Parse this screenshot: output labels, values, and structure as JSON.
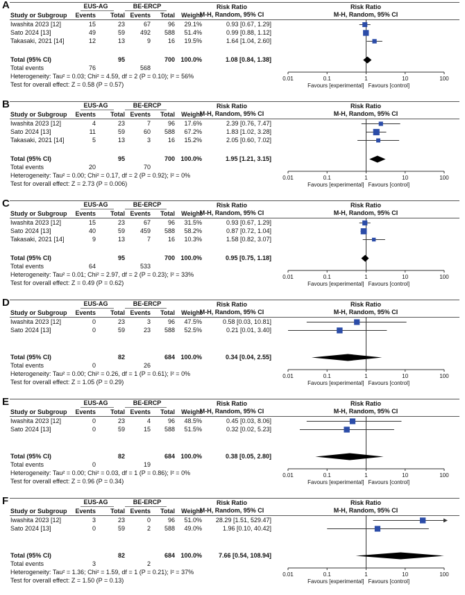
{
  "header": {
    "study": "Study or Subgroup",
    "exp_group": "EUS-AG",
    "ctrl_group": "BE-ERCP",
    "events": "Events",
    "total": "Total",
    "weight": "Weight",
    "rr_title": "Risk Ratio",
    "rr_method": "M-H, Random, 95% CI"
  },
  "axis": {
    "ticks": [
      "0.01",
      "0.1",
      "1",
      "10",
      "100"
    ],
    "left_label": "Favours [experimental]",
    "right_label": "Favours [control]"
  },
  "colors": {
    "square": "#2b4ca8",
    "diamond": "#000000",
    "line": "#333333"
  },
  "chart_data": [
    {
      "type": "forest",
      "panel": "A",
      "xscale": "log",
      "xlim": [
        0.01,
        100
      ],
      "studies": [
        {
          "name": "Iwashita 2023 [12]",
          "e1": "15",
          "n1": "23",
          "e2": "67",
          "n2": "96",
          "weight": "29.1%",
          "ci_text": "0.93 [0.67, 1.29]",
          "rr": 0.93,
          "lo": 0.67,
          "hi": 1.29,
          "w": 29.1
        },
        {
          "name": "Sato 2024 [13]",
          "e1": "49",
          "n1": "59",
          "e2": "492",
          "n2": "588",
          "weight": "51.4%",
          "ci_text": "0.99 [0.88, 1.12]",
          "rr": 0.99,
          "lo": 0.88,
          "hi": 1.12,
          "w": 51.4
        },
        {
          "name": "Takasaki, 2021 [14]",
          "e1": "12",
          "n1": "13",
          "e2": "9",
          "n2": "16",
          "weight": "19.5%",
          "ci_text": "1.64 [1.04, 2.60]",
          "rr": 1.64,
          "lo": 1.04,
          "hi": 2.6,
          "w": 19.5
        }
      ],
      "total": {
        "label": "Total (95% CI)",
        "n1": "95",
        "n2": "700",
        "weight": "100.0%",
        "ci_text": "1.08 [0.84, 1.38]",
        "rr": 1.08,
        "lo": 0.84,
        "hi": 1.38
      },
      "total_events": {
        "label": "Total events",
        "e1": "76",
        "e2": "568"
      },
      "heterogeneity": "Heterogeneity: Tau² = 0.03; Chi² = 4.59, df = 2 (P = 0.10); I² = 56%",
      "overall": "Test for overall effect: Z = 0.58 (P = 0.57)"
    },
    {
      "type": "forest",
      "panel": "B",
      "xscale": "log",
      "xlim": [
        0.01,
        100
      ],
      "studies": [
        {
          "name": "Iwashita 2023 [12]",
          "e1": "4",
          "n1": "23",
          "e2": "7",
          "n2": "96",
          "weight": "17.6%",
          "ci_text": "2.39 [0.76, 7.47]",
          "rr": 2.39,
          "lo": 0.76,
          "hi": 7.47,
          "w": 17.6
        },
        {
          "name": "Sato 2024 [13]",
          "e1": "11",
          "n1": "59",
          "e2": "60",
          "n2": "588",
          "weight": "67.2%",
          "ci_text": "1.83 [1.02, 3.28]",
          "rr": 1.83,
          "lo": 1.02,
          "hi": 3.28,
          "w": 67.2
        },
        {
          "name": "Takasaki, 2021 [14]",
          "e1": "5",
          "n1": "13",
          "e2": "3",
          "n2": "16",
          "weight": "15.2%",
          "ci_text": "2.05 [0.60, 7.02]",
          "rr": 2.05,
          "lo": 0.6,
          "hi": 7.02,
          "w": 15.2
        }
      ],
      "total": {
        "label": "Total (95% CI)",
        "n1": "95",
        "n2": "700",
        "weight": "100.0%",
        "ci_text": "1.95 [1.21, 3.15]",
        "rr": 1.95,
        "lo": 1.21,
        "hi": 3.15
      },
      "total_events": {
        "label": "Total events",
        "e1": "20",
        "e2": "70"
      },
      "heterogeneity": "Heterogeneity: Tau² = 0.00; Chi² = 0.17, df = 2 (P = 0.92); I² = 0%",
      "overall": "Test for overall effect: Z = 2.73 (P = 0.006)"
    },
    {
      "type": "forest",
      "panel": "C",
      "xscale": "log",
      "xlim": [
        0.01,
        100
      ],
      "studies": [
        {
          "name": "Iwashita 2023 [12]",
          "e1": "15",
          "n1": "23",
          "e2": "67",
          "n2": "96",
          "weight": "31.5%",
          "ci_text": "0.93 [0.67, 1.29]",
          "rr": 0.93,
          "lo": 0.67,
          "hi": 1.29,
          "w": 31.5
        },
        {
          "name": "Sato 2024 [13]",
          "e1": "40",
          "n1": "59",
          "e2": "459",
          "n2": "588",
          "weight": "58.2%",
          "ci_text": "0.87 [0.72, 1.04]",
          "rr": 0.87,
          "lo": 0.72,
          "hi": 1.04,
          "w": 58.2
        },
        {
          "name": "Takasaki, 2021 [14]",
          "e1": "9",
          "n1": "13",
          "e2": "7",
          "n2": "16",
          "weight": "10.3%",
          "ci_text": "1.58 [0.82, 3.07]",
          "rr": 1.58,
          "lo": 0.82,
          "hi": 3.07,
          "w": 10.3
        }
      ],
      "total": {
        "label": "Total (95% CI)",
        "n1": "95",
        "n2": "700",
        "weight": "100.0%",
        "ci_text": "0.95 [0.75, 1.18]",
        "rr": 0.95,
        "lo": 0.75,
        "hi": 1.18
      },
      "total_events": {
        "label": "Total events",
        "e1": "64",
        "e2": "533"
      },
      "heterogeneity": "Heterogeneity: Tau² = 0.01; Chi² = 2.97, df = 2 (P = 0.23); I² = 33%",
      "overall": "Test for overall effect: Z = 0.49 (P = 0.62)"
    },
    {
      "type": "forest",
      "panel": "D",
      "xscale": "log",
      "xlim": [
        0.01,
        100
      ],
      "studies": [
        {
          "name": "Iwashita 2023 [12]",
          "e1": "0",
          "n1": "23",
          "e2": "3",
          "n2": "96",
          "weight": "47.5%",
          "ci_text": "0.58 [0.03, 10.81]",
          "rr": 0.58,
          "lo": 0.03,
          "hi": 10.81,
          "w": 47.5
        },
        {
          "name": "Sato 2024 [13]",
          "e1": "0",
          "n1": "59",
          "e2": "23",
          "n2": "588",
          "weight": "52.5%",
          "ci_text": "0.21 [0.01, 3.40]",
          "rr": 0.21,
          "lo": 0.01,
          "hi": 3.4,
          "w": 52.5
        }
      ],
      "total": {
        "label": "Total (95% CI)",
        "n1": "82",
        "n2": "684",
        "weight": "100.0%",
        "ci_text": "0.34 [0.04, 2.55]",
        "rr": 0.34,
        "lo": 0.04,
        "hi": 2.55
      },
      "total_events": {
        "label": "Total events",
        "e1": "0",
        "e2": "26"
      },
      "heterogeneity": "Heterogeneity: Tau² = 0.00; Chi² = 0.26, df = 1 (P = 0.61); I² = 0%",
      "overall": "Test for overall effect: Z = 1.05 (P = 0.29)"
    },
    {
      "type": "forest",
      "panel": "E",
      "xscale": "log",
      "xlim": [
        0.01,
        100
      ],
      "studies": [
        {
          "name": "Iwashita 2023 [12]",
          "e1": "0",
          "n1": "23",
          "e2": "4",
          "n2": "96",
          "weight": "48.5%",
          "ci_text": "0.45 [0.03, 8.06]",
          "rr": 0.45,
          "lo": 0.03,
          "hi": 8.06,
          "w": 48.5
        },
        {
          "name": "Sato 2024 [13]",
          "e1": "0",
          "n1": "59",
          "e2": "15",
          "n2": "588",
          "weight": "51.5%",
          "ci_text": "0.32 [0.02, 5.23]",
          "rr": 0.32,
          "lo": 0.02,
          "hi": 5.23,
          "w": 51.5
        }
      ],
      "total": {
        "label": "Total (95% CI)",
        "n1": "82",
        "n2": "684",
        "weight": "100.0%",
        "ci_text": "0.38 [0.05, 2.80]",
        "rr": 0.38,
        "lo": 0.05,
        "hi": 2.8
      },
      "total_events": {
        "label": "Total events",
        "e1": "0",
        "e2": "19"
      },
      "heterogeneity": "Heterogeneity: Tau² = 0.00; Chi² = 0.03, df = 1 (P = 0.86); I² = 0%",
      "overall": "Test for overall effect: Z = 0.96 (P = 0.34)"
    },
    {
      "type": "forest",
      "panel": "F",
      "xscale": "log",
      "xlim": [
        0.01,
        100
      ],
      "studies": [
        {
          "name": "Iwashita 2023 [12]",
          "e1": "3",
          "n1": "23",
          "e2": "0",
          "n2": "96",
          "weight": "51.0%",
          "ci_text": "28.29 [1.51, 529.47]",
          "rr": 28.29,
          "lo": 1.51,
          "hi": 529.47,
          "w": 51.0
        },
        {
          "name": "Sato 2024 [13]",
          "e1": "0",
          "n1": "59",
          "e2": "2",
          "n2": "588",
          "weight": "49.0%",
          "ci_text": "1.96 [0.10, 40.42]",
          "rr": 1.96,
          "lo": 0.1,
          "hi": 40.42,
          "w": 49.0
        }
      ],
      "total": {
        "label": "Total (95% CI)",
        "n1": "82",
        "n2": "684",
        "weight": "100.0%",
        "ci_text": "7.66 [0.54, 108.94]",
        "rr": 7.66,
        "lo": 0.54,
        "hi": 108.94
      },
      "total_events": {
        "label": "Total events",
        "e1": "3",
        "e2": "2"
      },
      "heterogeneity": "Heterogeneity: Tau² = 1.36; Chi² = 1.59, df = 1 (P = 0.21); I² = 37%",
      "overall": "Test for overall effect: Z = 1.50 (P = 0.13)"
    }
  ]
}
